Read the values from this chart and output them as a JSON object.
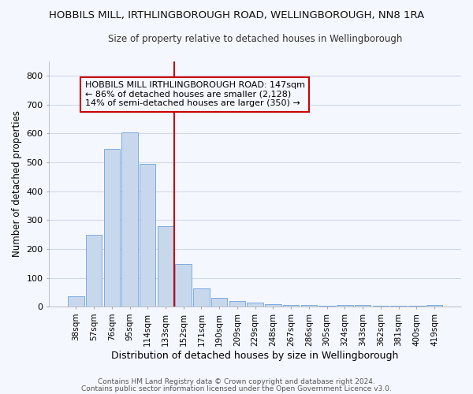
{
  "title1": "HOBBILS MILL, IRTHLINGBOROUGH ROAD, WELLINGBOROUGH, NN8 1RA",
  "title2": "Size of property relative to detached houses in Wellingborough",
  "xlabel": "Distribution of detached houses by size in Wellingborough",
  "ylabel": "Number of detached properties",
  "categories": [
    "38sqm",
    "57sqm",
    "76sqm",
    "95sqm",
    "114sqm",
    "133sqm",
    "152sqm",
    "171sqm",
    "190sqm",
    "209sqm",
    "229sqm",
    "248sqm",
    "267sqm",
    "286sqm",
    "305sqm",
    "324sqm",
    "343sqm",
    "362sqm",
    "381sqm",
    "400sqm",
    "419sqm"
  ],
  "values": [
    35,
    248,
    545,
    603,
    493,
    278,
    147,
    62,
    31,
    20,
    13,
    10,
    7,
    5,
    4,
    6,
    5,
    2,
    3,
    4,
    7
  ],
  "bar_color": "#c8d8ec",
  "bar_edgecolor": "#7aabe0",
  "vline_x": 6,
  "vline_color": "#cc0000",
  "annotation_text": "HOBBILS MILL IRTHLINGBOROUGH ROAD: 147sqm\n← 86% of detached houses are smaller (2,128)\n14% of semi-detached houses are larger (350) →",
  "annotation_box_edgecolor": "#cc0000",
  "footnote1": "Contains HM Land Registry data © Crown copyright and database right 2024.",
  "footnote2": "Contains public sector information licensed under the Open Government Licence v3.0.",
  "ylim": [
    0,
    850
  ],
  "yticks": [
    0,
    100,
    200,
    300,
    400,
    500,
    600,
    700,
    800
  ],
  "background_color": "#f5f7ff",
  "grid_color": "#d0d8e8",
  "title_fontsize": 9.5,
  "subtitle_fontsize": 8.5,
  "annot_fontsize": 8
}
